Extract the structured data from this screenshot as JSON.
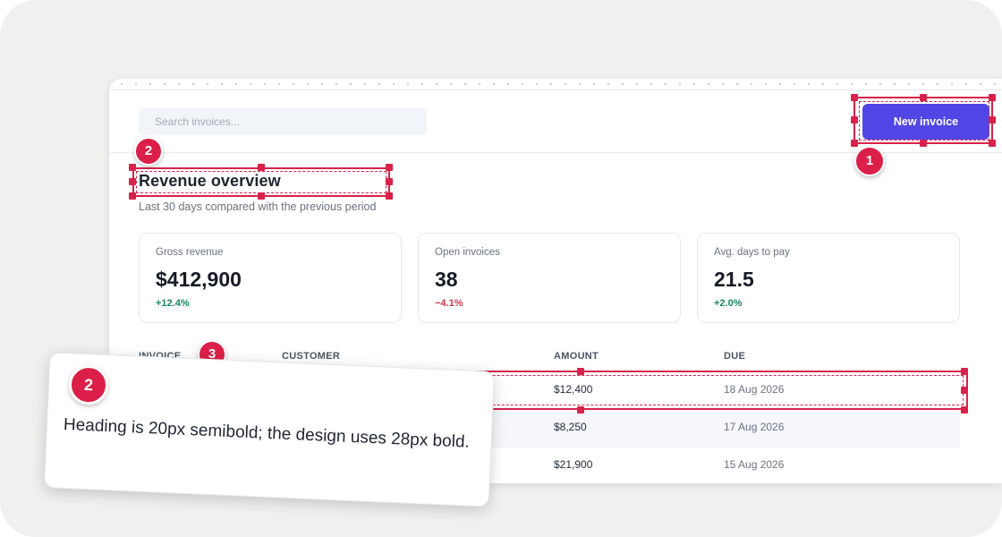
{
  "topbar": {
    "search_placeholder": "Search invoices...",
    "new_invoice_label": "New invoice"
  },
  "overview": {
    "title": "Revenue overview",
    "subtitle": "Last 30 days compared with the previous period"
  },
  "stats": [
    {
      "label": "Gross revenue",
      "value": "$412,900",
      "delta": "+12.4%",
      "trend": "up"
    },
    {
      "label": "Open invoices",
      "value": "38",
      "delta": "−4.1%",
      "trend": "down"
    },
    {
      "label": "Avg. days to pay",
      "value": "21.5",
      "delta": "+2.0%",
      "trend": "up"
    }
  ],
  "table": {
    "headers": [
      "INVOICE",
      "CUSTOMER",
      "AMOUNT",
      "DUE"
    ],
    "rows": [
      {
        "amount": "$12,400",
        "due": "18 Aug 2026"
      },
      {
        "amount": "$8,250",
        "due": "17 Aug 2026"
      },
      {
        "amount": "$21,900",
        "due": "15 Aug 2026"
      }
    ]
  },
  "annotations": {
    "marker_1": "1",
    "marker_2": "2",
    "marker_3": "3",
    "note": {
      "number": "2",
      "text": "Heading is 20px semibold; the design uses 28px bold."
    }
  },
  "colors": {
    "accent": "#5146e5",
    "annotation": "#d8224a",
    "delta_up": "#16855a",
    "delta_down": "#d43545"
  }
}
